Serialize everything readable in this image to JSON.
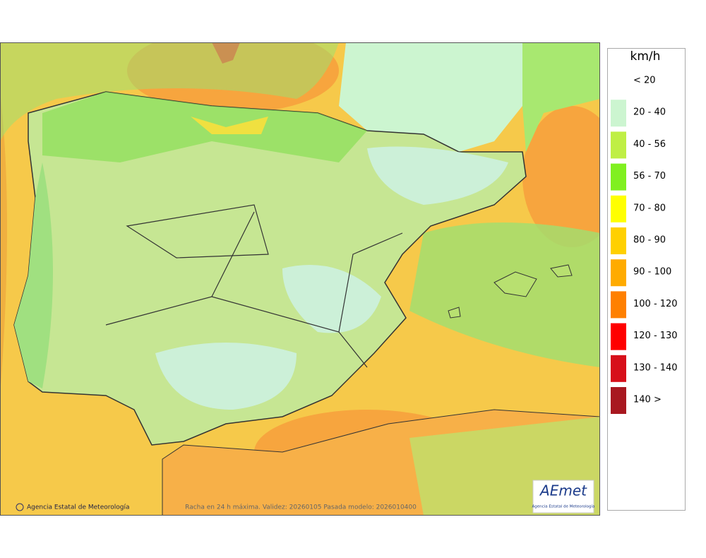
{
  "legend": {
    "title": "km/h",
    "items": [
      {
        "label": "< 20"
      },
      {
        "label": "20 - 40",
        "color": "#ccf5d0"
      },
      {
        "label": "40 - 56",
        "color": "#bfef45"
      },
      {
        "label": "56 - 70",
        "color": "#80f020"
      },
      {
        "label": "70 - 80",
        "color": "#ffff00"
      },
      {
        "label": "80 - 90",
        "color": "#ffd000"
      },
      {
        "label": "90 - 100",
        "color": "#ffab00"
      },
      {
        "label": "100 - 120",
        "color": "#ff8000"
      },
      {
        "label": "120 - 130",
        "color": "#ff0000"
      },
      {
        "label": "130 - 140",
        "color": "#d70f1a"
      },
      {
        "label": "140 >",
        "color": "#a81820"
      }
    ]
  },
  "footer": {
    "credit": "Agencia Estatal de Meteorología",
    "caption": "Racha en 24 h máxima. Validez: 20260105 Pasada modelo: 2026010400"
  },
  "logo": {
    "name": "AEmet",
    "subtitle": "Agencia Estatal de Meteorología"
  }
}
